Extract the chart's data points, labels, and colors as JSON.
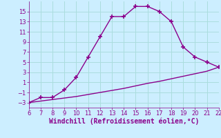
{
  "x": [
    6,
    7,
    8,
    9,
    10,
    11,
    12,
    13,
    14,
    15,
    16,
    17,
    18,
    19,
    20,
    21,
    22
  ],
  "y_curve": [
    -3,
    -2,
    -2,
    -0.5,
    2,
    6,
    10,
    14,
    14,
    16,
    16,
    15,
    13,
    8,
    6,
    5,
    4
  ],
  "y_line": [
    -3,
    -2.7,
    -2.4,
    -2.1,
    -1.8,
    -1.4,
    -1.0,
    -0.6,
    -0.2,
    0.3,
    0.8,
    1.2,
    1.7,
    2.2,
    2.7,
    3.2,
    4.0
  ],
  "line_color": "#8B008B",
  "bg_color": "#cceeff",
  "grid_color": "#aadddd",
  "tick_label_color": "#8B008B",
  "xlabel": "Windchill (Refroidissement éolien,°C)",
  "xlim": [
    6,
    22
  ],
  "ylim": [
    -4,
    17
  ],
  "yticks": [
    -3,
    -1,
    1,
    3,
    5,
    7,
    9,
    11,
    13,
    15
  ],
  "xticks": [
    6,
    7,
    8,
    9,
    10,
    11,
    12,
    13,
    14,
    15,
    16,
    17,
    18,
    19,
    20,
    21,
    22
  ],
  "marker": "+",
  "markersize": 5,
  "linewidth": 1.0,
  "tick_fontsize": 6,
  "xlabel_fontsize": 7
}
